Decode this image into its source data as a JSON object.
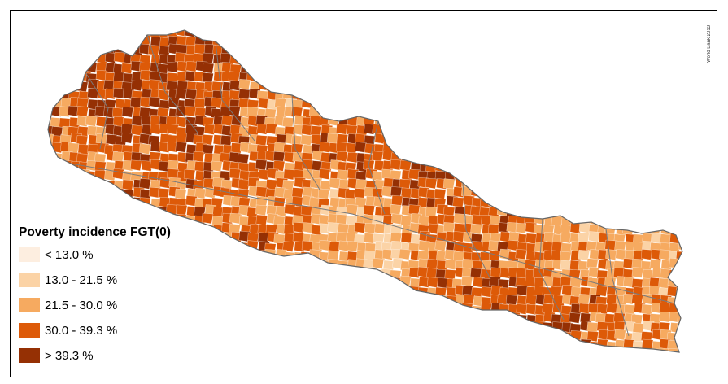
{
  "map": {
    "credit": "World Bank 2013",
    "legend": {
      "title": "Poverty incidence FGT(0)",
      "classes": [
        {
          "label": "< 13.0 %",
          "color": "#fdeee0"
        },
        {
          "label": "13.0 - 21.5 %",
          "color": "#fbd3a6"
        },
        {
          "label": "21.5 - 30.0 %",
          "color": "#f6aa60"
        },
        {
          "label": "30.0 - 39.3 %",
          "color": "#dd5a08"
        },
        {
          "label": "> 39.3 %",
          "color": "#953004"
        }
      ]
    },
    "boundary_color": "#7a7a7a"
  }
}
